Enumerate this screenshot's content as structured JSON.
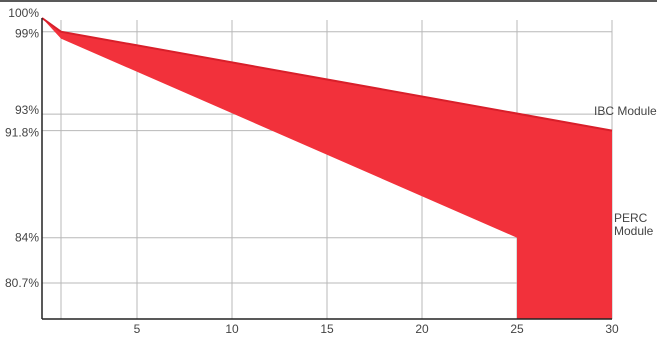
{
  "chart_data": {
    "type": "area",
    "title": "",
    "xlabel": "",
    "ylabel": "",
    "xlim": [
      0,
      30
    ],
    "ylim": [
      77.5,
      100
    ],
    "x_ticks": [
      5,
      10,
      15,
      20,
      25,
      30
    ],
    "x_tick_labels": [
      "5",
      "10",
      "15",
      "20",
      "25",
      "30"
    ],
    "y_ticks": [
      100,
      99,
      93,
      91.8,
      84,
      80.7
    ],
    "y_tick_labels": [
      "100%",
      "99%",
      "93%",
      "91.8%",
      "84%",
      "80.7%"
    ],
    "grid": true,
    "fill_color": "#f2313b",
    "top_edge_color": "#d81f2a",
    "series": [
      {
        "name": "IBC Module",
        "x": [
          0,
          1,
          30
        ],
        "y": [
          100,
          99,
          91.8
        ]
      },
      {
        "name": "PERC Module",
        "x": [
          0,
          1,
          25,
          25,
          30
        ],
        "y": [
          100,
          98.5,
          84,
          77.5,
          77.5
        ]
      }
    ],
    "annotations": [
      "IBC Module",
      "PERC\nModule"
    ]
  }
}
